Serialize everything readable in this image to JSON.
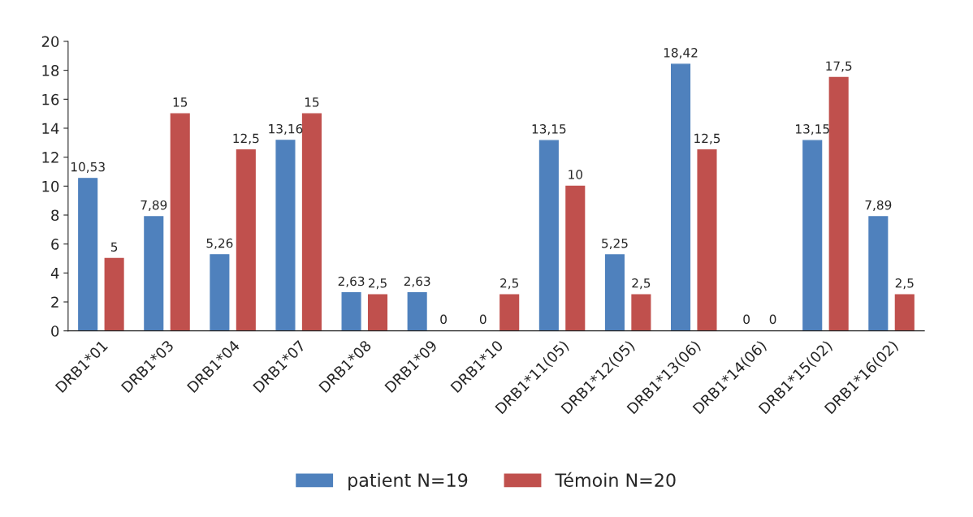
{
  "chart_data": {
    "type": "bar",
    "categories": [
      "DRB1*01",
      "DRB1*03",
      "DRB1*04",
      "DRB1*07",
      "DRB1*08",
      "DRB1*09",
      "DRB1*10",
      "DRB1*11(05)",
      "DRB1*12(05)",
      "DRB1*13(06)",
      "DRB1*14(06)",
      "DRB1*15(02)",
      "DRB1*16(02)"
    ],
    "series": [
      {
        "name": "patient N=19",
        "color": "#4f81bd",
        "values": [
          10.53,
          7.89,
          5.26,
          13.16,
          2.63,
          2.63,
          0,
          13.15,
          5.25,
          18.42,
          0,
          13.15,
          7.89
        ],
        "value_labels": [
          "10,53",
          "7,89",
          "5,26",
          "13,16",
          "2,63",
          "2,63",
          "0",
          "13,15",
          "5,25",
          "18,42",
          "0",
          "13,15",
          "7,89"
        ]
      },
      {
        "name": "Témoin N=20",
        "color": "#c0504d",
        "values": [
          5,
          15,
          12.5,
          15,
          2.5,
          0,
          2.5,
          10,
          2.5,
          12.5,
          0,
          17.5,
          2.5
        ],
        "value_labels": [
          "5",
          "15",
          "12,5",
          "15",
          "2,5",
          "0",
          "2,5",
          "10",
          "2,5",
          "12,5",
          "0",
          "17,5",
          "2,5"
        ]
      }
    ],
    "ylim": [
      0,
      20
    ],
    "yticks": [
      0,
      2,
      4,
      6,
      8,
      10,
      12,
      14,
      16,
      18,
      20
    ],
    "grid": false,
    "legend": "bottom"
  }
}
